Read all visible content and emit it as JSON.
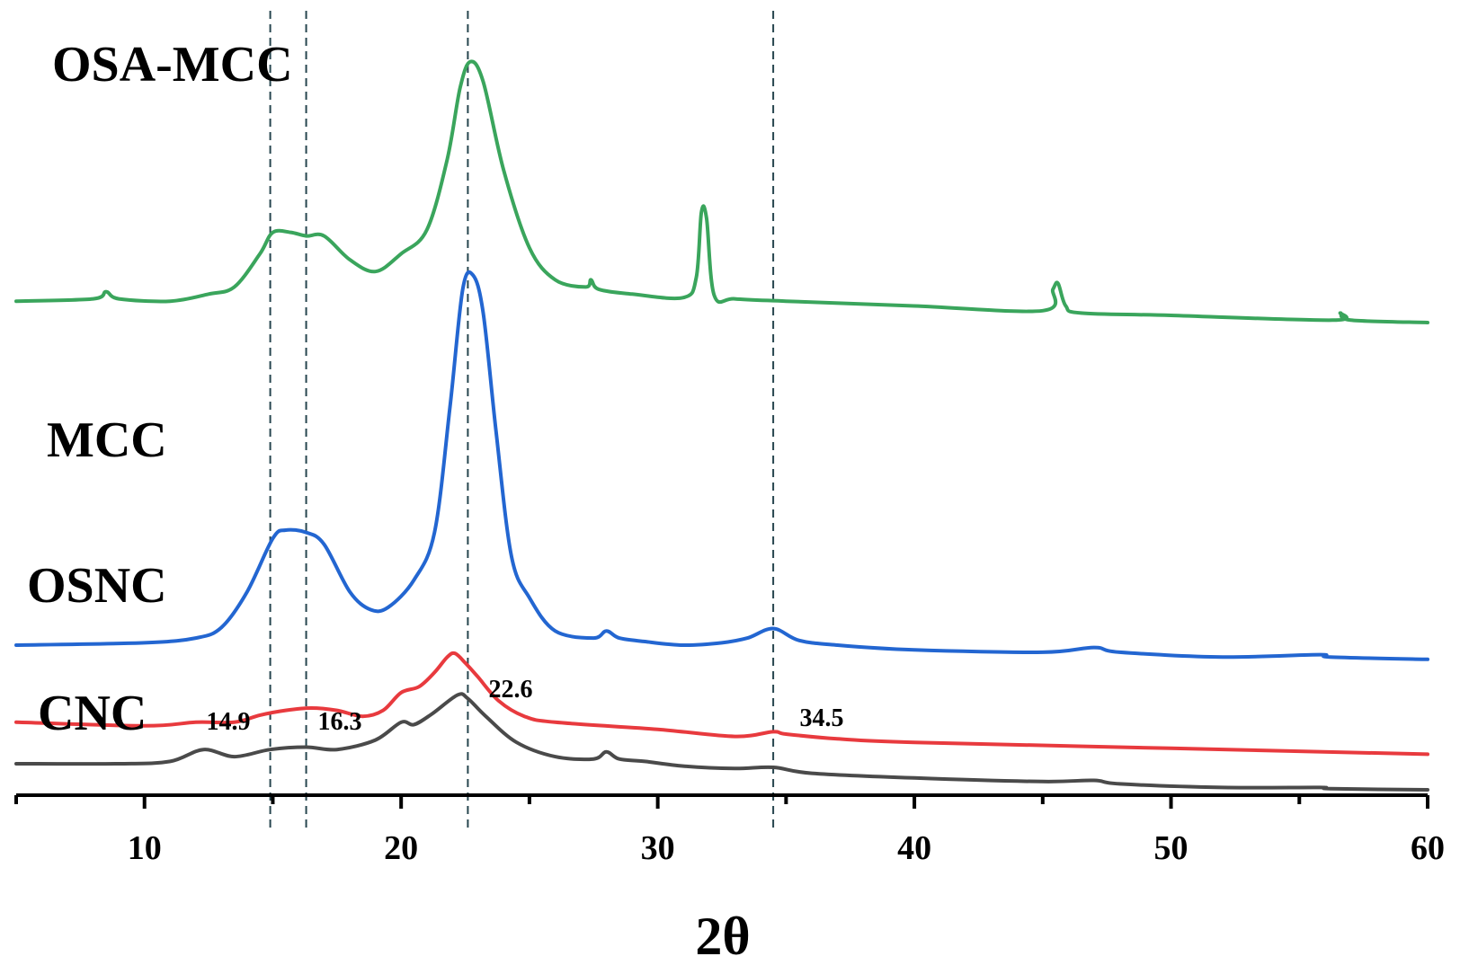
{
  "chart_data": {
    "type": "line",
    "title": "",
    "xlabel": "2θ",
    "ylabel": "",
    "xlim": [
      5,
      60
    ],
    "xticks": [
      10,
      20,
      30,
      40,
      50,
      60
    ],
    "xtick_labels": [
      "10",
      "20",
      "30",
      "40",
      "50",
      "60"
    ],
    "grid": false,
    "legend": "inline labels at left",
    "reference_lines": [
      {
        "x": 14.9,
        "label": "14.9"
      },
      {
        "x": 16.3,
        "label": "16.3"
      },
      {
        "x": 22.6,
        "label": "22.6"
      },
      {
        "x": 34.5,
        "label": "34.5"
      }
    ],
    "series": [
      {
        "name": "OSA-MCC",
        "label": "OSA-MCC",
        "color": "#3aa55c",
        "offset": 3.2,
        "x": [
          5,
          8,
          8.5,
          9,
          11,
          12.5,
          13.5,
          14.5,
          15,
          15.7,
          16.3,
          17,
          18,
          19,
          20,
          21,
          21.8,
          22.3,
          22.7,
          23.2,
          24,
          25,
          26,
          27.2,
          27.4,
          27.7,
          29,
          31,
          31.5,
          31.7,
          31.9,
          32.2,
          33,
          35,
          40,
          45,
          45.4,
          45.6,
          45.9,
          46.5,
          50,
          56.3,
          56.6,
          57,
          60
        ],
        "y": [
          0.7,
          0.72,
          0.78,
          0.72,
          0.7,
          0.76,
          0.82,
          1.1,
          1.28,
          1.28,
          1.25,
          1.25,
          1.05,
          0.95,
          1.1,
          1.3,
          1.9,
          2.5,
          2.72,
          2.55,
          1.8,
          1.15,
          0.88,
          0.82,
          0.88,
          0.8,
          0.76,
          0.73,
          0.9,
          1.45,
          1.4,
          0.75,
          0.72,
          0.7,
          0.66,
          0.62,
          0.8,
          0.85,
          0.66,
          0.6,
          0.58,
          0.54,
          0.6,
          0.54,
          0.52
        ]
      },
      {
        "name": "MCC",
        "label": "MCC",
        "color": "#2366d1",
        "offset": 1.0,
        "x": [
          5,
          10,
          12,
          13,
          14,
          15,
          15.5,
          16.3,
          17,
          18,
          18.8,
          19.5,
          20.5,
          21.3,
          21.9,
          22.4,
          22.8,
          23.2,
          23.7,
          24.3,
          25,
          26,
          27.5,
          28,
          28.5,
          29.5,
          31,
          32.5,
          33.5,
          34.5,
          35.5,
          37,
          40,
          45,
          47,
          48,
          52,
          55.8,
          56.2,
          60
        ],
        "y": [
          0.0,
          0.02,
          0.06,
          0.15,
          0.45,
          0.9,
          0.97,
          0.95,
          0.85,
          0.45,
          0.3,
          0.32,
          0.55,
          0.95,
          2.0,
          3.0,
          3.12,
          2.8,
          1.8,
          0.75,
          0.4,
          0.12,
          0.06,
          0.12,
          0.06,
          0.03,
          0.0,
          0.02,
          0.06,
          0.14,
          0.04,
          0.0,
          -0.04,
          -0.06,
          -0.02,
          -0.06,
          -0.1,
          -0.08,
          -0.1,
          -0.12
        ]
      },
      {
        "name": "OSNC",
        "label": "OSNC",
        "color": "#e83a3e",
        "offset": 0.35,
        "x": [
          5,
          10,
          12,
          13.5,
          14.5,
          15.5,
          16.5,
          17.5,
          18.5,
          19.3,
          20,
          20.7,
          21.3,
          21.8,
          22.1,
          22.5,
          23,
          23.8,
          24.8,
          26,
          30,
          33,
          34.5,
          35,
          37,
          40,
          50,
          60
        ],
        "y": [
          0.0,
          -0.03,
          0.0,
          0.0,
          0.06,
          0.1,
          0.12,
          0.1,
          0.05,
          0.1,
          0.25,
          0.3,
          0.42,
          0.55,
          0.58,
          0.5,
          0.38,
          0.18,
          0.05,
          0.0,
          -0.06,
          -0.12,
          -0.08,
          -0.1,
          -0.14,
          -0.17,
          -0.22,
          -0.27
        ]
      },
      {
        "name": "CNC",
        "label": "CNC",
        "color": "#4a4a4a",
        "offset": 0.0,
        "x": [
          5,
          9,
          11,
          12.3,
          13.5,
          14.9,
          16.3,
          17.5,
          19,
          20,
          20.5,
          21.2,
          22.2,
          22.6,
          23.3,
          24.5,
          26,
          27.5,
          28,
          28.5,
          29.5,
          31,
          33,
          34.5,
          36,
          40,
          45,
          47,
          48,
          52,
          55.8,
          56.2,
          60
        ],
        "y": [
          0.0,
          0.0,
          0.02,
          0.12,
          0.06,
          0.12,
          0.14,
          0.12,
          0.2,
          0.35,
          0.33,
          0.42,
          0.58,
          0.55,
          0.4,
          0.18,
          0.06,
          0.04,
          0.1,
          0.04,
          0.02,
          -0.02,
          -0.04,
          -0.03,
          -0.08,
          -0.12,
          -0.15,
          -0.14,
          -0.17,
          -0.2,
          -0.2,
          -0.21,
          -0.22
        ]
      }
    ]
  }
}
